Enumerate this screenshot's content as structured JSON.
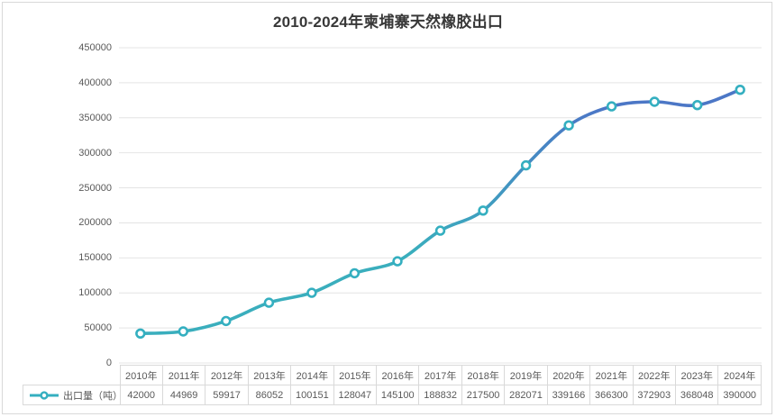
{
  "chart": {
    "title": "2010-2024年柬埔寨天然橡胶出口",
    "legend_label": "出口量（吨）"
  },
  "chart_data": {
    "type": "line",
    "title": "2010-2024年柬埔寨天然橡胶出口",
    "categories": [
      "2010年",
      "2011年",
      "2012年",
      "2013年",
      "2014年",
      "2015年",
      "2016年",
      "2017年",
      "2018年",
      "2019年",
      "2020年",
      "2021年",
      "2022年",
      "2023年",
      "2024年"
    ],
    "series": [
      {
        "name": "出口量（吨）",
        "values": [
          42000,
          44969,
          59917,
          86052,
          100151,
          128047,
          145100,
          188832,
          217500,
          282071,
          339166,
          366300,
          372903,
          368048,
          390000
        ]
      }
    ],
    "ylim": [
      0,
      450000
    ],
    "ytick_step": 50000,
    "ytick_labels": [
      "0",
      "50000",
      "100000",
      "150000",
      "200000",
      "250000",
      "300000",
      "350000",
      "400000",
      "450000"
    ],
    "grid": "horizontal",
    "smooth": true,
    "legend_position": "bottom-left-of-data-table",
    "data_table_shown": true,
    "colors": {
      "line_gradient_bottom": "#3aaebd",
      "line_gradient_top": "#4c77c6",
      "marker_stroke": "#34afc0",
      "marker_fill": "#ffffff",
      "gridline": "#e4e4e4",
      "axis_text": "#595959",
      "table_border": "#d9d9d9",
      "title_text": "#383838",
      "frame_border": "#d9d9d9"
    }
  }
}
